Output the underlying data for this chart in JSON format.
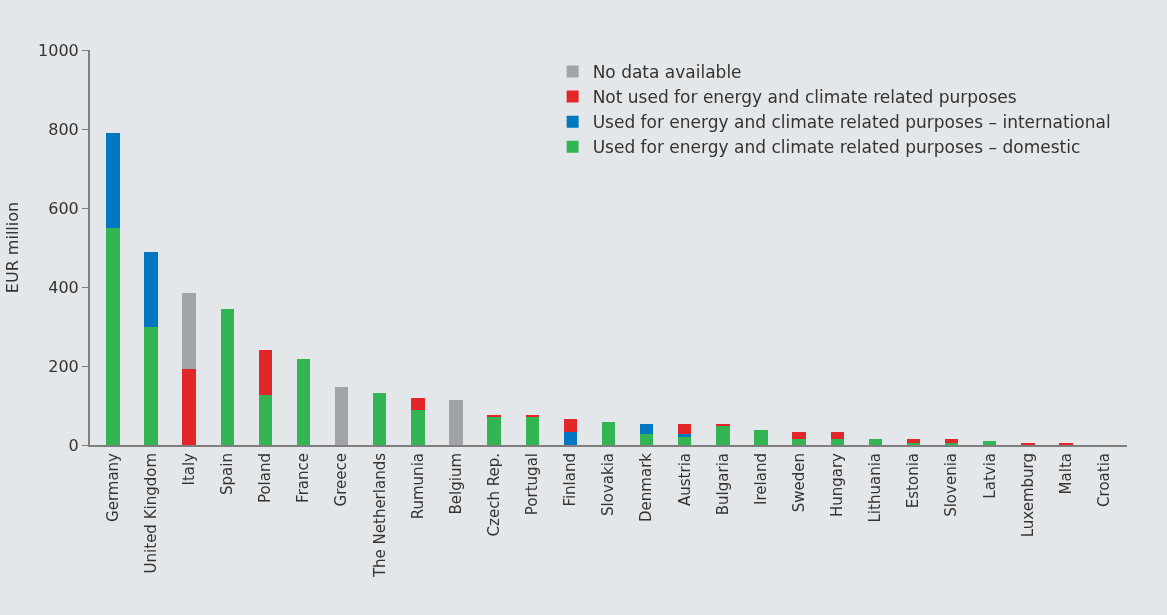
{
  "chart_data": {
    "type": "bar",
    "stacked": true,
    "ylabel": "EUR million",
    "categories": [
      "Germany",
      "United Kingdom",
      "Italy",
      "Spain",
      "Poland",
      "France",
      "Greece",
      "The Netherlands",
      "Rumunia",
      "Belgium",
      "Czech Rep.",
      "Portugal",
      "Finland",
      "Slovakia",
      "Denmark",
      "Austria",
      "Bulgaria",
      "Ireland",
      "Sweden",
      "Hungary",
      "Lithuania",
      "Estonia",
      "Slovenia",
      "Latvia",
      "Luxemburg",
      "Malta",
      "Croatia"
    ],
    "series": [
      {
        "name": "Used for energy and climate related purposes – domestic",
        "color": "#33b554",
        "values": [
          550,
          300,
          0,
          344,
          126,
          219,
          0,
          131,
          88,
          0,
          71,
          71,
          0,
          59,
          27,
          22,
          48,
          38,
          16,
          15,
          15,
          5,
          5,
          10,
          0,
          0,
          0
        ]
      },
      {
        "name": "Used for energy and climate related purposes – international",
        "color": "#0077c0",
        "values": [
          240,
          188,
          0,
          0,
          0,
          0,
          0,
          0,
          0,
          0,
          0,
          0,
          32,
          0,
          27,
          5,
          0,
          0,
          0,
          0,
          0,
          0,
          0,
          0,
          0,
          0,
          0
        ]
      },
      {
        "name": "Not used for energy and climate related purposes",
        "color": "#e3262a",
        "values": [
          0,
          0,
          192,
          0,
          115,
          0,
          0,
          0,
          32,
          0,
          5,
          5,
          33,
          0,
          0,
          27,
          6,
          0,
          16,
          17,
          0,
          10,
          10,
          0,
          5,
          5,
          0
        ]
      },
      {
        "name": "No data available",
        "color": "#a0a4a8",
        "values": [
          0,
          0,
          192,
          0,
          0,
          0,
          147,
          0,
          0,
          115,
          0,
          0,
          0,
          0,
          0,
          0,
          0,
          0,
          0,
          0,
          0,
          0,
          0,
          0,
          0,
          0,
          0
        ]
      }
    ],
    "ylim": [
      0,
      1000
    ],
    "yticks": [
      0,
      200,
      400,
      600,
      800,
      1000
    ],
    "grid": false,
    "legend": "top right"
  }
}
